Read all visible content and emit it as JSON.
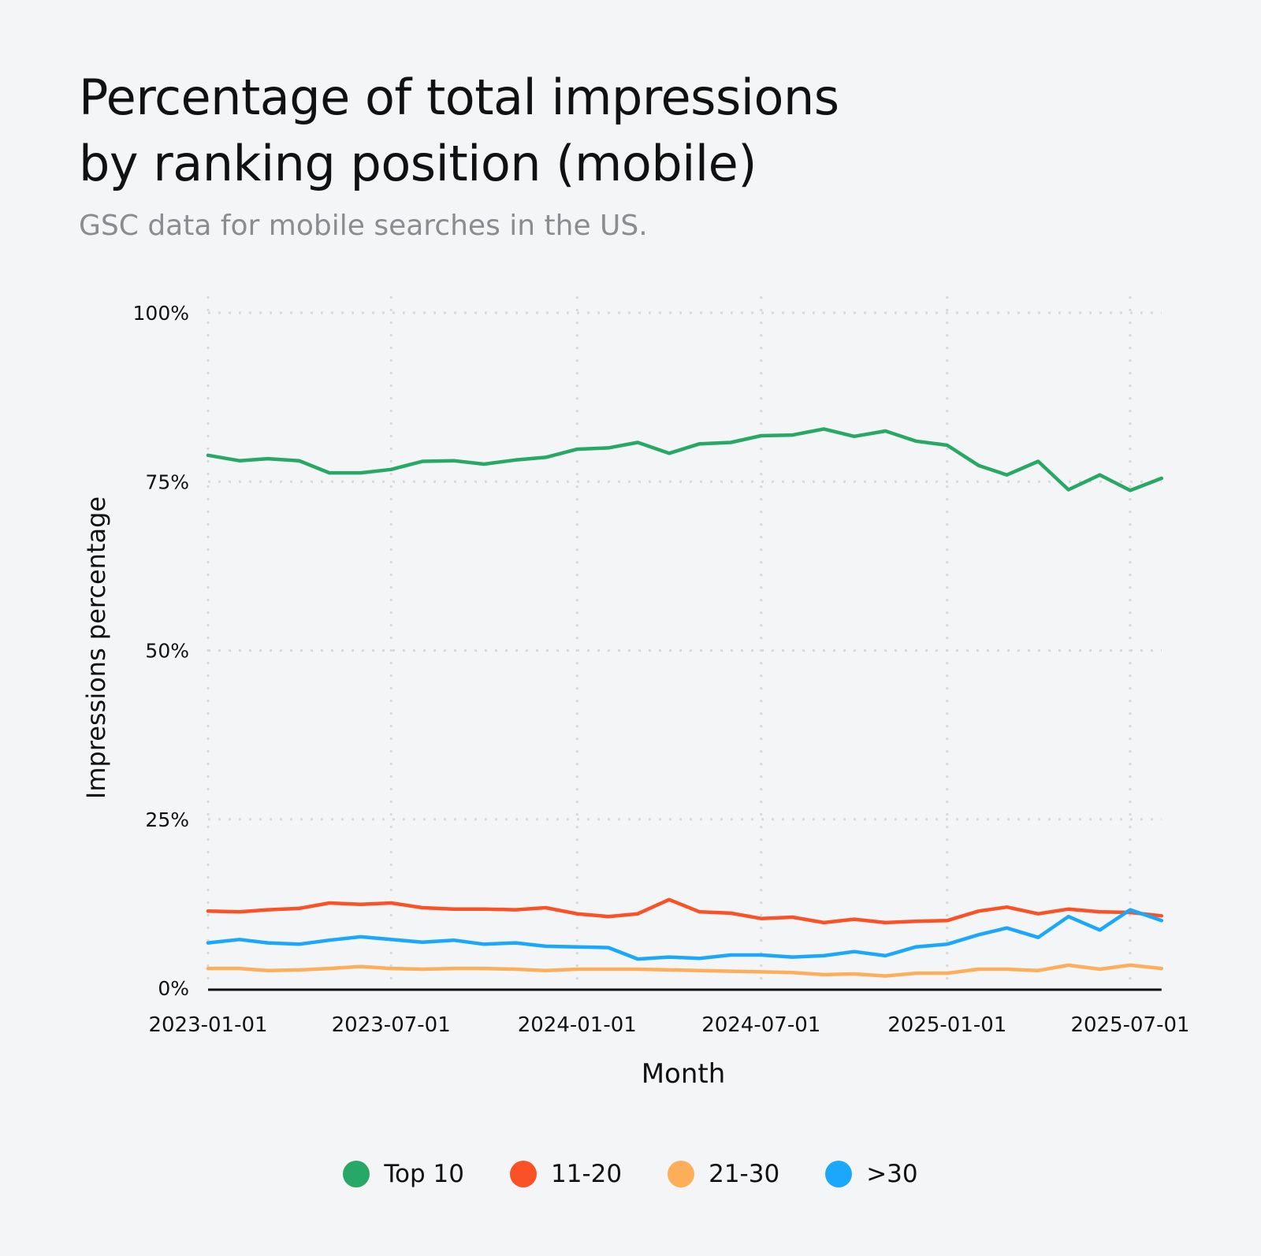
{
  "chart_data": {
    "type": "line",
    "title": "Percentage of total impressions by ranking position (mobile)",
    "title_lines": [
      "Percentage of total impressions",
      "by ranking position (mobile)"
    ],
    "subtitle": "GSC data for mobile searches in the US.",
    "xlabel": "Month",
    "ylabel": "Impressions percentage",
    "ylim": [
      0,
      100
    ],
    "xlim": [
      "2023-01-01",
      "2025-08-01"
    ],
    "yticks": [
      0,
      25,
      50,
      75,
      100
    ],
    "ytick_labels": [
      "0%",
      "25%",
      "50%",
      "75%",
      "100%"
    ],
    "xticks": [
      "2023-01-01",
      "2023-07-01",
      "2024-01-01",
      "2024-07-01",
      "2025-01-01",
      "2025-07-01"
    ],
    "grid": true,
    "legend_position": "bottom",
    "x": [
      "2023-01-01",
      "2023-02-01",
      "2023-03-01",
      "2023-04-01",
      "2023-05-01",
      "2023-06-01",
      "2023-07-01",
      "2023-08-01",
      "2023-09-01",
      "2023-10-01",
      "2023-11-01",
      "2023-12-01",
      "2024-01-01",
      "2024-02-01",
      "2024-03-01",
      "2024-04-01",
      "2024-05-01",
      "2024-06-01",
      "2024-07-01",
      "2024-08-01",
      "2024-09-01",
      "2024-10-01",
      "2024-11-01",
      "2024-12-01",
      "2025-01-01",
      "2025-02-01",
      "2025-03-01",
      "2025-04-01",
      "2025-05-01",
      "2025-06-01",
      "2025-07-01",
      "2025-08-01"
    ],
    "series": [
      {
        "name": "Top 10",
        "color": "#27a866",
        "values": [
          78.9,
          78.1,
          78.4,
          78.1,
          76.3,
          76.3,
          76.8,
          78.0,
          78.1,
          77.6,
          78.2,
          78.6,
          79.8,
          80.0,
          80.8,
          79.2,
          80.6,
          80.8,
          81.8,
          81.9,
          82.8,
          81.7,
          82.5,
          81.0,
          80.4,
          77.4,
          76.0,
          78.0,
          73.8,
          76.0,
          73.7,
          75.5
        ]
      },
      {
        "name": "11-20",
        "color": "#fa5226",
        "values": [
          11.4,
          11.3,
          11.6,
          11.8,
          12.6,
          12.4,
          12.6,
          11.9,
          11.7,
          11.7,
          11.6,
          11.9,
          11.0,
          10.6,
          11.0,
          13.1,
          11.3,
          11.1,
          10.3,
          10.5,
          9.7,
          10.2,
          9.7,
          9.9,
          10.0,
          11.4,
          12.0,
          11.0,
          11.7,
          11.3,
          11.2,
          10.7
        ]
      },
      {
        "name": "21-30",
        "color": "#fdae5a",
        "values": [
          2.9,
          2.9,
          2.6,
          2.7,
          2.9,
          3.2,
          2.9,
          2.8,
          2.9,
          2.9,
          2.8,
          2.6,
          2.8,
          2.8,
          2.8,
          2.7,
          2.6,
          2.5,
          2.4,
          2.3,
          2.0,
          2.1,
          1.8,
          2.2,
          2.2,
          2.8,
          2.8,
          2.6,
          3.4,
          2.8,
          3.4,
          2.9
        ]
      },
      {
        "name": ">30",
        "color": "#1ba7fc",
        "values": [
          6.7,
          7.2,
          6.7,
          6.5,
          7.1,
          7.6,
          7.2,
          6.8,
          7.1,
          6.5,
          6.7,
          6.2,
          6.1,
          6.0,
          4.3,
          4.6,
          4.4,
          4.9,
          4.9,
          4.6,
          4.8,
          5.4,
          4.8,
          6.1,
          6.5,
          7.9,
          8.9,
          7.5,
          10.6,
          8.6,
          11.6,
          10.0
        ]
      }
    ]
  }
}
